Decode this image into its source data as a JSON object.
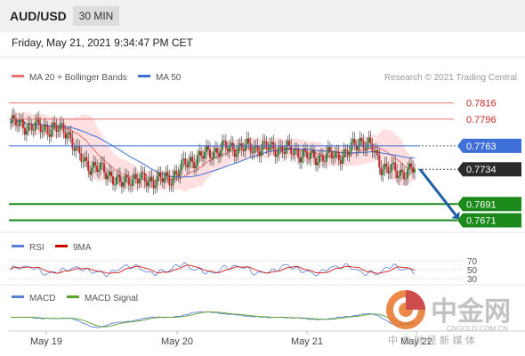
{
  "header": {
    "symbol": "AUD/USD",
    "timeframe": "30 MIN",
    "datetime": "Friday, May 21, 2021 9:34:47 PM CET"
  },
  "legend": {
    "bollinger": "MA 20 + Bollinger Bands",
    "ma50": "MA 50",
    "credit": "Research © 2021 Trading Central"
  },
  "colors": {
    "up": "#2e7d32",
    "down": "#c62828",
    "bands": "#ffd9d9",
    "ma20": "#e57373",
    "ma50": "#3f6fd8",
    "resistance": "#e57373",
    "support": "#1b8a1b",
    "pivot": "#3f6fd8",
    "arrow": "#1f5fa8",
    "rsi": "#5b7fd6",
    "ma9": "#cc0000",
    "macd": "#5b7fd6",
    "signal": "#5aa02c"
  },
  "watermark": {
    "brand": "中金网",
    "domain": "CNGOLD.COM.CN",
    "tagline": "中 方 财 经 新 媒 体"
  },
  "chart_data": [
    {
      "type": "candlestick",
      "title": "AUD/USD 30 MIN",
      "xaxis": {
        "ticks": [
          "May 19",
          "May 20",
          "May 21",
          "May 22"
        ]
      },
      "ylim": [
        0.7655,
        0.783
      ],
      "levels": [
        {
          "value": 0.7816,
          "label": "0.7816",
          "kind": "resistance"
        },
        {
          "value": 0.7796,
          "label": "0.7796",
          "kind": "resistance"
        },
        {
          "value": 0.7763,
          "label": "0.7763",
          "kind": "pivot"
        },
        {
          "value": 0.7734,
          "label": "0.7734",
          "kind": "last"
        },
        {
          "value": 0.7691,
          "label": "0.7691",
          "kind": "support"
        },
        {
          "value": 0.7671,
          "label": "0.7671",
          "kind": "support"
        }
      ],
      "series": [
        {
          "name": "MA 20 + Bollinger Bands",
          "kind": "ma20"
        },
        {
          "name": "MA 50",
          "kind": "ma50"
        }
      ],
      "forecast": {
        "from": 0.7734,
        "to": 0.7671
      }
    },
    {
      "type": "line",
      "title": "RSI",
      "ylim": [
        20,
        80
      ],
      "yticks": [
        "70",
        "50",
        "30"
      ],
      "series": [
        {
          "name": "RSI"
        },
        {
          "name": "9MA"
        }
      ]
    },
    {
      "type": "line",
      "title": "MACD",
      "series": [
        {
          "name": "MACD"
        },
        {
          "name": "MACD Signal"
        }
      ]
    }
  ]
}
